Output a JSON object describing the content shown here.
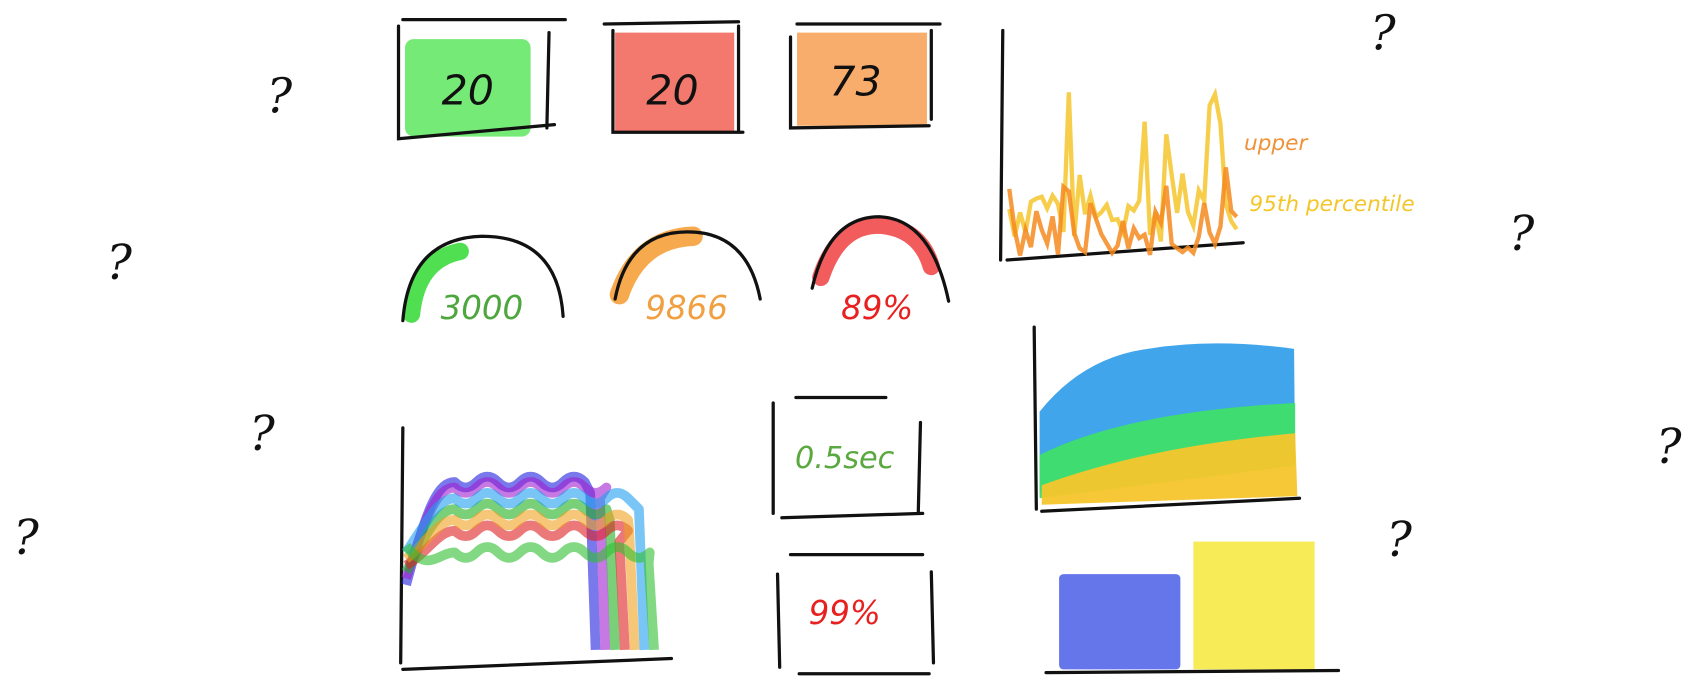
{
  "question_marks": [
    "?",
    "?",
    "?",
    "?",
    "?",
    "?",
    "?",
    "?"
  ],
  "tiles": [
    20,
    20,
    73
  ],
  "gauges": [
    3000,
    9866,
    "89%"
  ],
  "stats": [
    "0.5sec",
    "99%"
  ],
  "legend": [
    "upper",
    "95th percentile"
  ]
}
